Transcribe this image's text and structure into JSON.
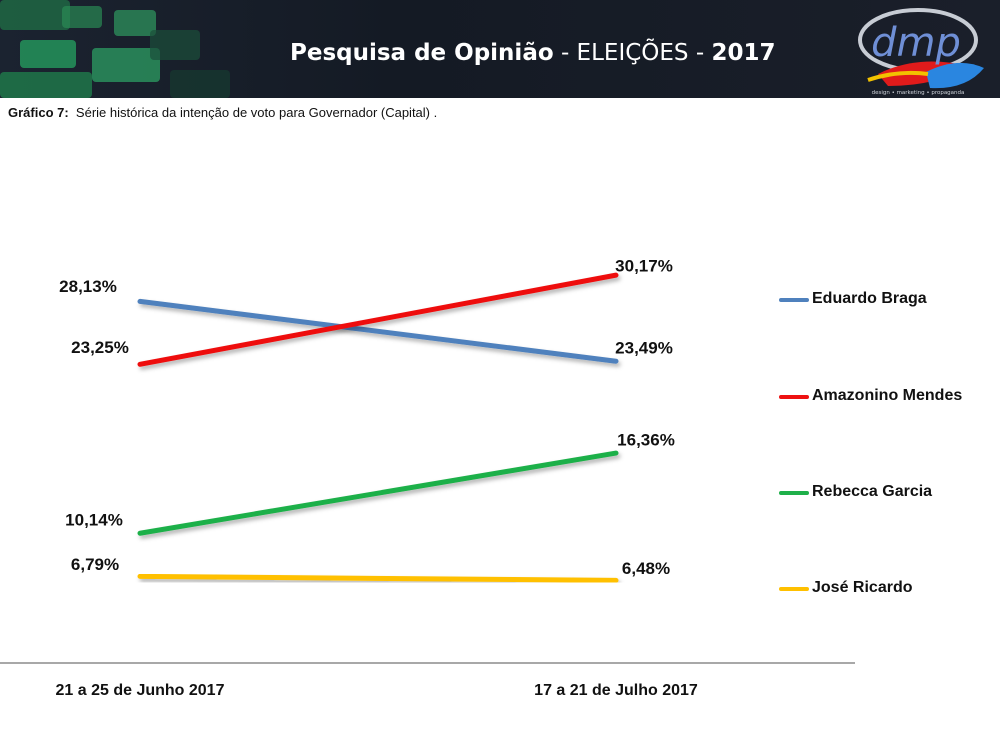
{
  "header": {
    "title_bold": "Pesquisa de Opinião",
    "title_sep": " - ELEIÇÕES - ",
    "title_year": "2017",
    "logo_text": "dmp",
    "logo_tagline": "design • marketing • propaganda"
  },
  "caption": {
    "label": "Gráfico 7:",
    "text": "Série histórica da intenção de voto para Governador (Capital) ."
  },
  "chart_data": {
    "type": "line",
    "categories": [
      "21 a 25 de Junho 2017",
      "17 a 21 de Julho 2017"
    ],
    "series": [
      {
        "name": "Eduardo Braga",
        "values": [
          28.13,
          23.49
        ],
        "labels": [
          "28,13%",
          "23,49%"
        ],
        "color": "#4f81bd"
      },
      {
        "name": "Amazonino Mendes",
        "values": [
          23.25,
          30.17
        ],
        "labels": [
          "23,25%",
          "30,17%"
        ],
        "color": "#ee1111"
      },
      {
        "name": "Rebecca Garcia",
        "values": [
          10.14,
          16.36
        ],
        "labels": [
          "10,14%",
          "16,36%"
        ],
        "color": "#1fb04a"
      },
      {
        "name": "José Ricardo",
        "values": [
          6.79,
          6.48
        ],
        "labels": [
          "6,79%",
          "6,48%"
        ],
        "color": "#ffc000"
      }
    ],
    "legend": "right",
    "grid": false
  }
}
